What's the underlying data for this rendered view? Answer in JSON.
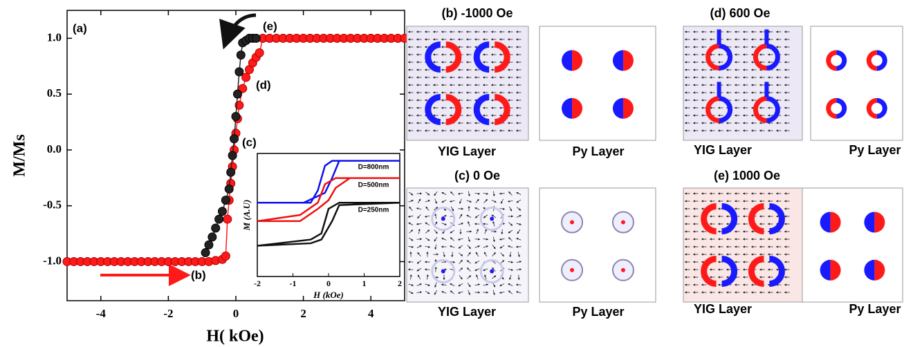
{
  "chart_data": [
    {
      "type": "line",
      "x_label": "H( kOe)",
      "y_label": "M/Ms",
      "annotations": [
        "(a)",
        "(b)",
        "(c)",
        "(d)",
        "(e)"
      ],
      "xlim": [
        -5,
        5
      ],
      "xticks": [
        -4,
        -2,
        0,
        2,
        4
      ],
      "ylim": [
        -1.35,
        1.25
      ],
      "yticks": [
        {
          "value": -1,
          "label": "-1.0"
        },
        -0.5,
        {
          "value": 0,
          "label": "0.0"
        },
        0.5,
        {
          "value": 1,
          "label": "1.0"
        }
      ],
      "series": [
        {
          "color": "#ff1a1a",
          "x": [
            -5,
            -4.8,
            -4.6,
            -4.4,
            -4.2,
            -4,
            -3.8,
            -3.6,
            -3.4,
            -3.2,
            -3,
            -2.8,
            -2.6,
            -2.4,
            -2.2,
            -2,
            -1.8,
            -1.6,
            -1.4,
            -1.2,
            -1,
            -0.8,
            -0.6,
            -0.4,
            -0.3,
            -0.25,
            -0.2,
            -0.15,
            -0.1,
            -0.05,
            0,
            0.05,
            0.1,
            0.2,
            0.3,
            0.4,
            0.5,
            0.6,
            0.7,
            0.8,
            1,
            1.2,
            1.4,
            1.6,
            1.8,
            2,
            2.2,
            2.4,
            2.6,
            2.8,
            3,
            3.2,
            3.4,
            3.6,
            3.8,
            4,
            4.2,
            4.4,
            4.6,
            4.8,
            5
          ],
          "values": [
            -1,
            -1,
            -1,
            -1,
            -1,
            -1,
            -1,
            -1,
            -1,
            -1,
            -1,
            -1,
            -1,
            -1,
            -1,
            -1,
            -1,
            -1,
            -1,
            -1,
            -1,
            -1,
            -0.99,
            -0.98,
            -0.95,
            -0.62,
            -0.45,
            -0.3,
            -0.15,
            0,
            0.15,
            0.28,
            0.4,
            0.55,
            0.65,
            0.72,
            0.78,
            0.83,
            0.87,
            1,
            1,
            1,
            1,
            1,
            1,
            1,
            1,
            1,
            1,
            1,
            1,
            1,
            1,
            1,
            1,
            1,
            1,
            1,
            1,
            1,
            1
          ]
        },
        {
          "color": "#222222",
          "x": [
            -0.9,
            -0.8,
            -0.7,
            -0.6,
            -0.5,
            -0.4,
            -0.3,
            -0.2,
            -0.15,
            -0.1,
            -0.05,
            0,
            0.05,
            0.1,
            0.15,
            0.2,
            0.3,
            0.4,
            0.5,
            0.6
          ],
          "values": [
            -0.92,
            -0.85,
            -0.78,
            -0.7,
            -0.62,
            -0.55,
            -0.45,
            -0.35,
            -0.2,
            -0.05,
            0.1,
            0.3,
            0.5,
            0.7,
            0.85,
            0.96,
            0.98,
            1,
            1,
            1
          ]
        }
      ]
    },
    {
      "type": "line",
      "x_label": "H (kOe)",
      "y_label": "M (A.U)",
      "xlim": [
        -2,
        2
      ],
      "xticks": [
        -2,
        -1,
        0,
        1,
        2
      ],
      "ylim": [
        0,
        1
      ],
      "series": [
        {
          "name": "D=800nm",
          "color": "#1010ee",
          "x": [
            -2,
            -0.7,
            -0.1,
            0.1,
            0.3,
            2,
            0.1,
            -0.1,
            -0.3,
            -0.5,
            -2
          ],
          "values": [
            0.6,
            0.6,
            0.68,
            0.8,
            0.94,
            0.94,
            0.94,
            0.9,
            0.7,
            0.6,
            0.6
          ]
        },
        {
          "name": "D=500nm",
          "color": "#ee1010",
          "x": [
            -2,
            -0.8,
            -0.3,
            0,
            0.2,
            0.6,
            2,
            0.2,
            -0.1,
            -0.3,
            -0.8,
            -2
          ],
          "values": [
            0.45,
            0.45,
            0.55,
            0.62,
            0.72,
            0.8,
            0.8,
            0.8,
            0.75,
            0.6,
            0.5,
            0.45
          ]
        },
        {
          "name": "D=250nm",
          "color": "#111111",
          "x": [
            -2,
            -0.5,
            -0.2,
            0.1,
            0.3,
            2,
            0.3,
            0,
            -0.2,
            -0.5,
            -2
          ],
          "values": [
            0.25,
            0.27,
            0.3,
            0.45,
            0.58,
            0.6,
            0.6,
            0.55,
            0.35,
            0.3,
            0.25
          ]
        }
      ]
    }
  ],
  "panels": [
    {
      "title": "(b) -1000 Oe",
      "left_label": "YIG Layer",
      "right_label": "Py Layer"
    },
    {
      "title": "(d) 600 Oe",
      "left_label": "YIG Layer",
      "right_label": "Py Layer"
    },
    {
      "title": "(c) 0 Oe",
      "left_label": "YIG Layer",
      "right_label": "Py Layer"
    },
    {
      "title": "(e) 1000 Oe",
      "left_label": "YIG Layer",
      "right_label": "Py Layer"
    }
  ]
}
